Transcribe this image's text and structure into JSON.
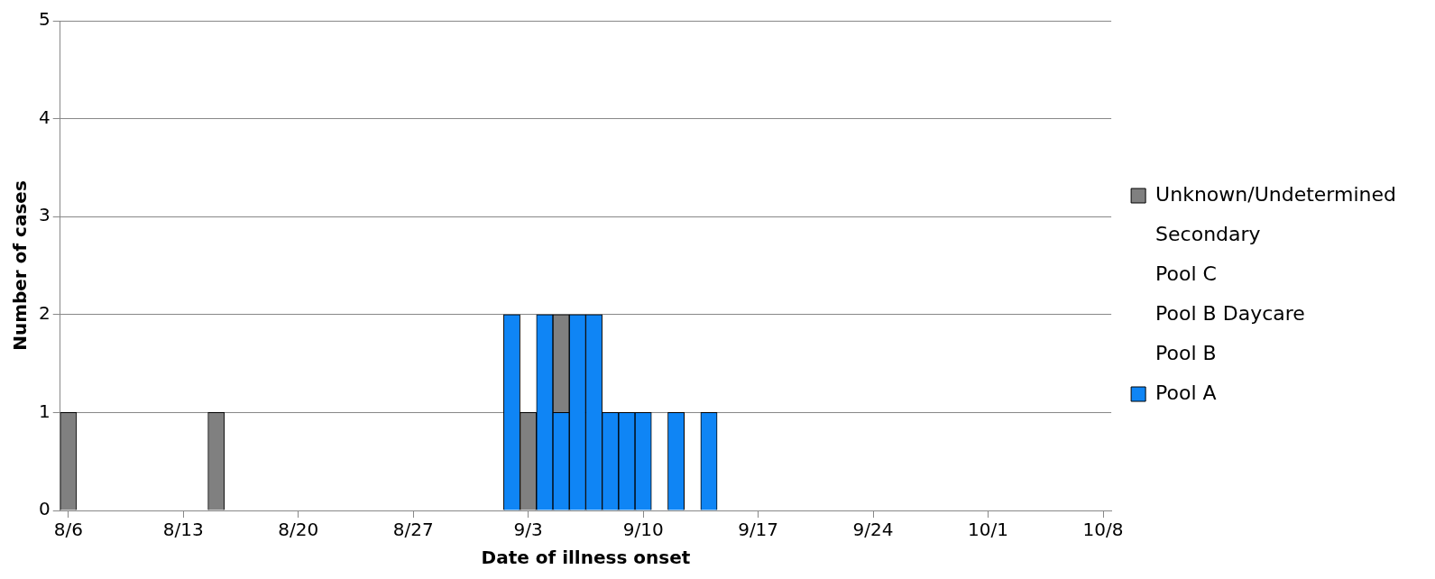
{
  "chart_data": {
    "type": "bar",
    "stacked": true,
    "xlabel": "Date of illness onset",
    "ylabel": "Number of cases",
    "x": [
      "--08-06",
      "--08-15",
      "--09-02",
      "--09-03",
      "--09-04",
      "--09-05",
      "--09-06",
      "--09-07",
      "--09-08",
      "--09-09",
      "--09-10",
      "--09-12",
      "--09-14"
    ],
    "series": [
      {
        "name": "Pool A",
        "color": "#0f85f5",
        "values": [
          null,
          null,
          2,
          null,
          2,
          1,
          2,
          2,
          1,
          1,
          1,
          1,
          1
        ]
      },
      {
        "name": "Pool B",
        "color": null,
        "values": [
          null,
          null,
          null,
          null,
          null,
          null,
          null,
          null,
          null,
          null,
          null,
          null,
          null
        ]
      },
      {
        "name": "Pool B Daycare",
        "color": null,
        "values": [
          null,
          null,
          null,
          null,
          null,
          null,
          null,
          null,
          null,
          null,
          null,
          null,
          null
        ]
      },
      {
        "name": "Pool C",
        "color": null,
        "values": [
          null,
          null,
          null,
          null,
          null,
          null,
          null,
          null,
          null,
          null,
          null,
          null,
          null
        ]
      },
      {
        "name": "Secondary",
        "color": null,
        "values": [
          null,
          null,
          null,
          null,
          null,
          null,
          null,
          null,
          null,
          null,
          null,
          null,
          null
        ]
      },
      {
        "name": "Unknown/Undetermined",
        "color": "#808080",
        "values": [
          1,
          1,
          null,
          1,
          null,
          1,
          null,
          null,
          null,
          null,
          null,
          null,
          null
        ]
      }
    ],
    "xlim": [
      "--08-05T12:00",
      "--10-08T12:00"
    ],
    "xticks": [
      {
        "value": "--08-06",
        "label": "8/6"
      },
      {
        "value": "--08-13",
        "label": "8/13"
      },
      {
        "value": "--08-20",
        "label": "8/20"
      },
      {
        "value": "--08-27",
        "label": "8/27"
      },
      {
        "value": "--09-03",
        "label": "9/3"
      },
      {
        "value": "--09-10",
        "label": "9/10"
      },
      {
        "value": "--09-17",
        "label": "9/17"
      },
      {
        "value": "--09-24",
        "label": "9/24"
      },
      {
        "value": "--10-01",
        "label": "10/1"
      },
      {
        "value": "--10-08",
        "label": "10/8"
      }
    ],
    "ylim": [
      0,
      5
    ],
    "yticks": [
      0,
      1,
      2,
      3,
      4,
      5
    ],
    "grid": "y",
    "legend": "right"
  }
}
